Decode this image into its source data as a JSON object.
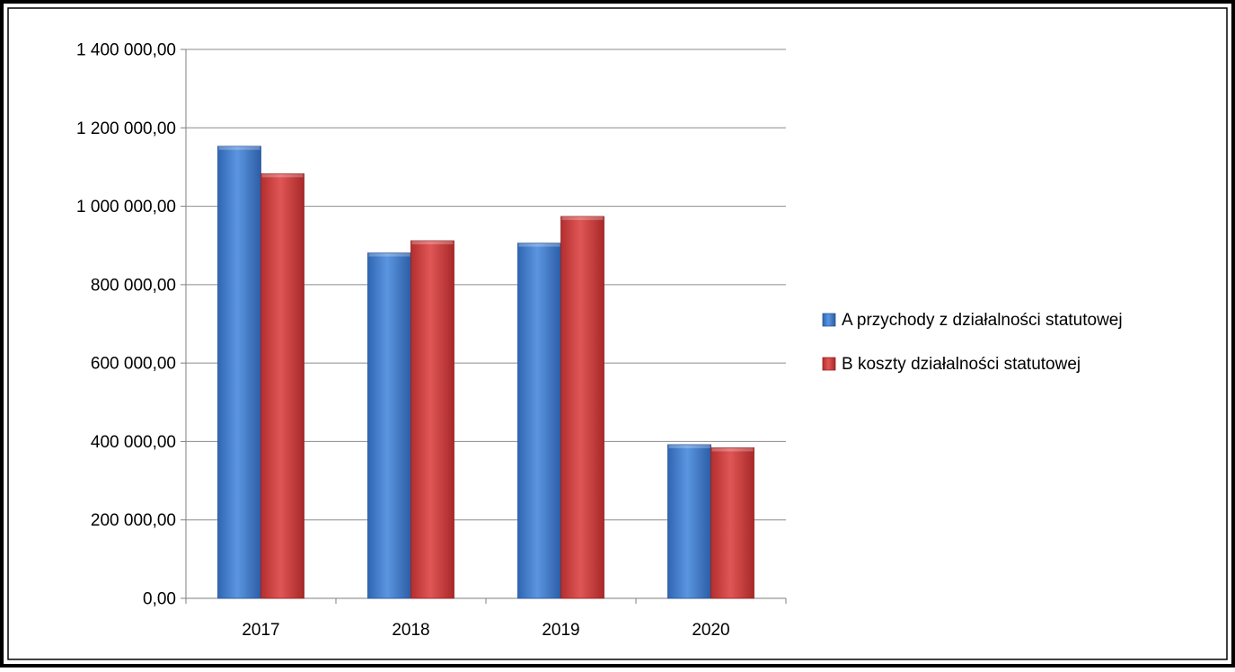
{
  "chart_data": {
    "type": "bar",
    "categories": [
      "2017",
      "2018",
      "2019",
      "2020"
    ],
    "series": [
      {
        "name": "A przychody z działalności statutowej",
        "color": "#4a86d6",
        "values": [
          1153000,
          881000,
          906000,
          392000
        ]
      },
      {
        "name": "B koszty działalności statutowej",
        "color": "#d64545",
        "values": [
          1083000,
          912000,
          974000,
          384000
        ]
      }
    ],
    "ylim": [
      0,
      1400000
    ],
    "y_ticks": [
      0,
      200000,
      400000,
      600000,
      800000,
      1000000,
      1200000,
      1400000
    ],
    "y_tick_labels": [
      "0,00",
      "200 000,00",
      "400 000,00",
      "600 000,00",
      "800 000,00",
      "1 000 000,00",
      "1 200 000,00",
      "1 400 000,00"
    ],
    "grid": true,
    "legend_position": "right",
    "title": "",
    "xlabel": "",
    "ylabel": ""
  }
}
